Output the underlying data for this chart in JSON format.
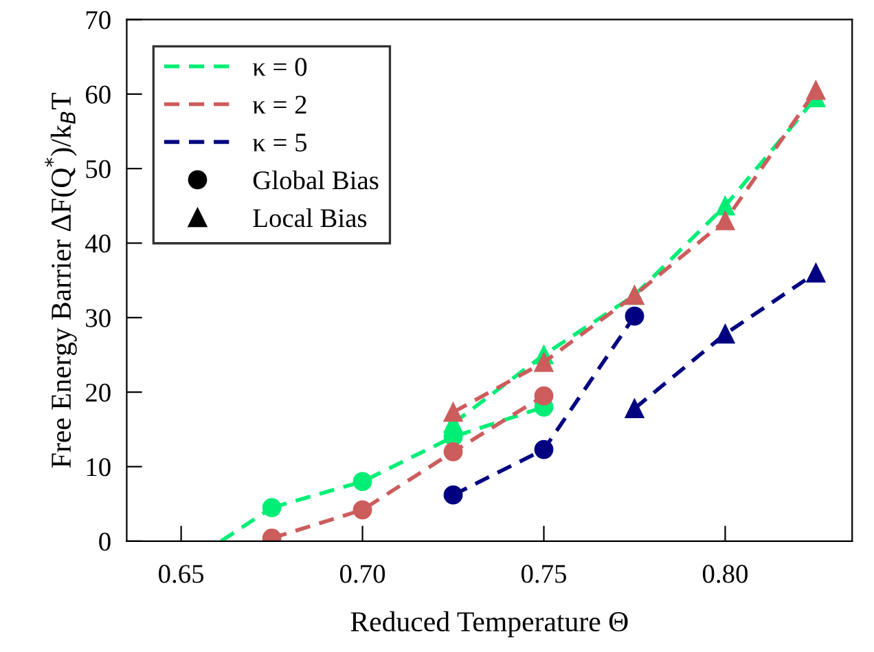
{
  "chart_data": {
    "type": "line",
    "xlabel": "Reduced Temperature Θ",
    "ylabel": "Free Energy Barrier ΔF(Q$^{*}$)/k$_{B}$T",
    "xlim": [
      0.635,
      0.835
    ],
    "ylim": [
      0,
      70
    ],
    "xticks": [
      {
        "value": 0.65,
        "label": "0.65"
      },
      {
        "value": 0.7,
        "label": "0.70"
      },
      {
        "value": 0.75,
        "label": "0.75"
      },
      {
        "value": 0.8,
        "label": "0.80"
      }
    ],
    "yticks": [
      0,
      10,
      20,
      30,
      40,
      50,
      60,
      70
    ],
    "grid": false,
    "legend": "top left",
    "line_style": "dashed",
    "series": [
      {
        "name": "κ = 0",
        "color": "#00ee76",
        "marker": "circle",
        "x": [
          0.675,
          0.7,
          0.725,
          0.75
        ],
        "values": [
          4.5,
          8,
          14,
          18
        ]
      },
      {
        "color": "#00ee76",
        "marker": "none",
        "x": [
          0.661,
          0.675
        ],
        "values": [
          0,
          4.5
        ]
      },
      {
        "name": "κ = 2",
        "color": "#cd5c5c",
        "marker": "circle",
        "x": [
          0.675,
          0.7,
          0.725,
          0.75
        ],
        "values": [
          0.4,
          4.2,
          12,
          19.5
        ]
      },
      {
        "name": "κ = 5",
        "color": "#000080",
        "marker": "circle",
        "x": [
          0.725,
          0.75,
          0.775
        ],
        "values": [
          6.2,
          12.3,
          30.2
        ]
      },
      {
        "color": "#00ee76",
        "marker": "triangle",
        "x": [
          0.725,
          0.75,
          0.775,
          0.8,
          0.825
        ],
        "values": [
          15.8,
          25,
          33,
          45,
          59.5
        ]
      },
      {
        "color": "#cd5c5c",
        "marker": "triangle",
        "x": [
          0.725,
          0.75,
          0.775,
          0.8,
          0.825
        ],
        "values": [
          17.3,
          24,
          33,
          43,
          60.5
        ]
      },
      {
        "color": "#000080",
        "marker": "triangle",
        "x": [
          0.775,
          0.8,
          0.825
        ],
        "values": [
          17.8,
          27.8,
          36
        ]
      },
      {
        "type": "scatter",
        "name": "Global Bias",
        "color": "#000000",
        "marker": "circle"
      },
      {
        "type": "scatter",
        "name": "Local Bias",
        "color": "#000000",
        "marker": "triangle"
      }
    ]
  }
}
